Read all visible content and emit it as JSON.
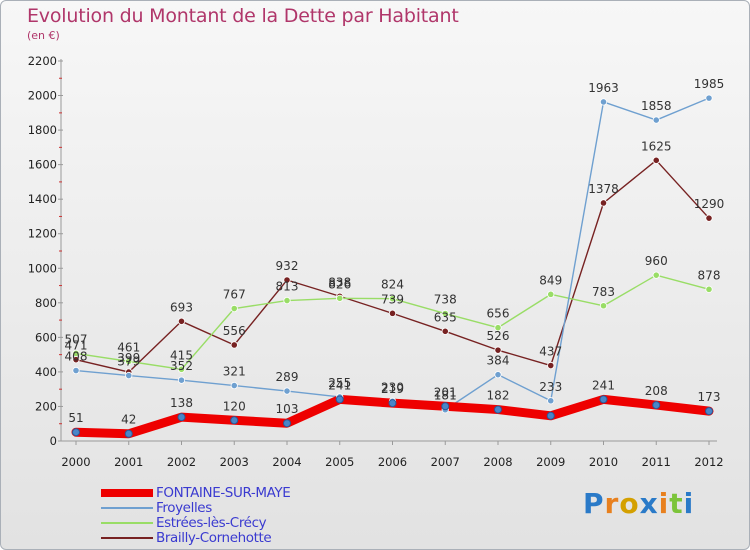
{
  "header": {
    "title": "Evolution du Montant de la Dette par Habitant",
    "subtitle": "(en €)"
  },
  "brand": {
    "text": "Proxiti",
    "letter_colors": [
      "#2a7ac8",
      "#e8801e",
      "#d4a000",
      "#2a7ac8",
      "#e8801e",
      "#7cc43a",
      "#2a7ac8"
    ]
  },
  "chart_data": {
    "type": "line",
    "title": "Evolution du Montant de la Dette par Habitant",
    "subtitle": "(en €)",
    "x": [
      "2000",
      "2001",
      "2002",
      "2003",
      "2004",
      "2005",
      "2006",
      "2007",
      "2008",
      "2009",
      "2010",
      "2011",
      "2012"
    ],
    "ylim": [
      0,
      2200
    ],
    "yticks": [
      "0",
      "200",
      "400",
      "600",
      "800",
      "1000",
      "1200",
      "1400",
      "1600",
      "1800",
      "2000",
      "2200"
    ],
    "grid": false,
    "legend_position": "bottom-left",
    "series": [
      {
        "name": "FONTAINE-SUR-MAYE",
        "color": "#ee0000",
        "values": [
          51,
          42,
          138,
          120,
          103,
          241,
          219,
          201,
          182,
          146,
          241,
          208,
          173
        ],
        "labels": [
          "51",
          "42",
          "138",
          "120",
          "103",
          "241",
          "219",
          "201",
          "182",
          "",
          "241",
          "208",
          "173"
        ]
      },
      {
        "name": "Froyelles",
        "color": "#6fa0d0",
        "values": [
          408,
          379,
          352,
          321,
          289,
          255,
          230,
          181,
          384,
          233,
          1963,
          1858,
          1985
        ],
        "labels": [
          "408",
          "379",
          "352",
          "321",
          "289",
          "255",
          "230",
          "181",
          "384",
          "233",
          "1963",
          "1858",
          "1985"
        ]
      },
      {
        "name": "Estrées-lès-Crécy",
        "color": "#99dd66",
        "values": [
          507,
          461,
          415,
          767,
          813,
          826,
          824,
          738,
          656,
          849,
          783,
          960,
          878
        ],
        "labels": [
          "507",
          "461",
          "415",
          "767",
          "813",
          "826",
          "824",
          "738",
          "656",
          "849",
          "783",
          "960",
          "878"
        ]
      },
      {
        "name": "Brailly-Cornehotte",
        "color": "#772222",
        "values": [
          471,
          399,
          693,
          556,
          932,
          838,
          739,
          635,
          526,
          437,
          1378,
          1625,
          1290
        ],
        "labels": [
          "471",
          "399",
          "693",
          "556",
          "932",
          "838",
          "739",
          "635",
          "526",
          "437",
          "1378",
          "1625",
          "1290"
        ]
      }
    ]
  }
}
